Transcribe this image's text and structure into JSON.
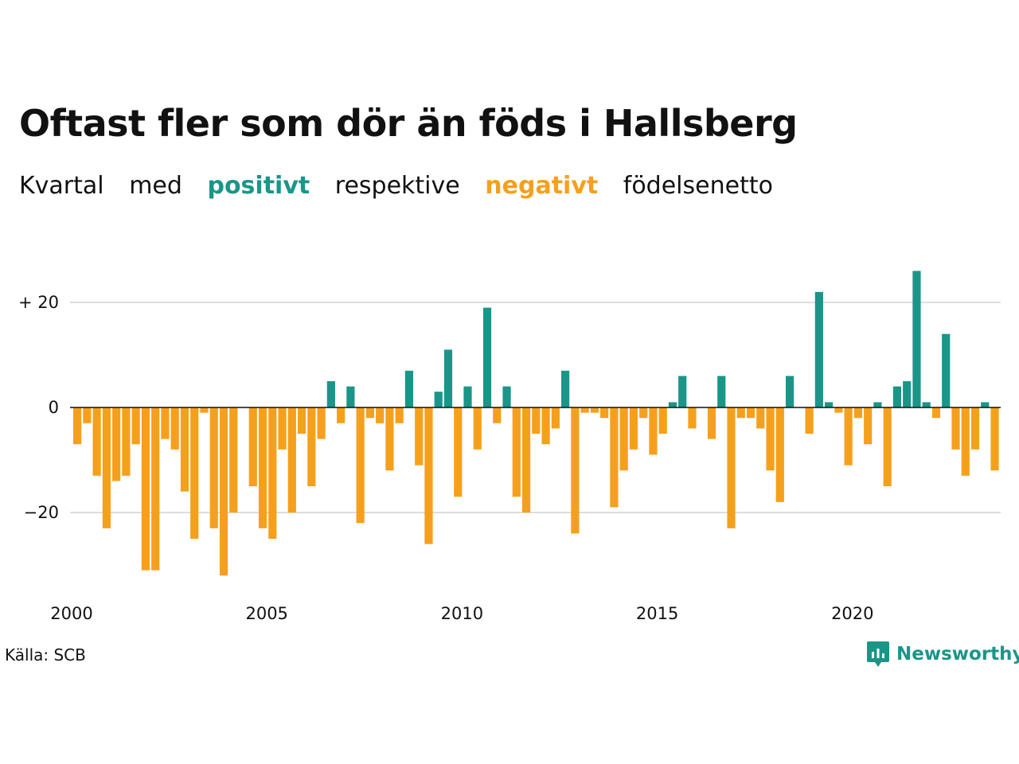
{
  "title": "Oftast fler som dör än föds i Hallsberg",
  "subtitle": {
    "w1": "Kvartal",
    "w2": "med",
    "positive": "positivt",
    "w3": "respektive",
    "negative": "negativt",
    "w4": "födelsenetto"
  },
  "source": "Källa: SCB",
  "brand": "Newsworthy",
  "colors": {
    "positive": "#1a9688",
    "negative": "#f5a01d",
    "grid": "#dddddd"
  },
  "chart_data": {
    "type": "bar",
    "title": "Oftast fler som dör än föds i Hallsberg",
    "xlabel": "",
    "ylabel": "",
    "ylim": [
      -33,
      28
    ],
    "y_ticks": [
      {
        "value": 20,
        "label": "+ 20"
      },
      {
        "value": 0,
        "label": "0"
      },
      {
        "value": -20,
        "label": "−20"
      }
    ],
    "x_ticks": [
      "2000",
      "2005",
      "2010",
      "2015",
      "2020"
    ],
    "x_start_year": 2000,
    "quarters_per_year": 4,
    "grid": true,
    "values": [
      -7,
      -3,
      -13,
      -23,
      -14,
      -13,
      -7,
      -31,
      -31,
      -6,
      -8,
      -16,
      -25,
      -1,
      -23,
      -32,
      -20,
      0,
      -15,
      -23,
      -25,
      -8,
      -20,
      -5,
      -15,
      -6,
      5,
      -3,
      4,
      -22,
      -2,
      -3,
      -12,
      -3,
      7,
      -11,
      -26,
      3,
      11,
      -17,
      4,
      -8,
      19,
      -3,
      4,
      -17,
      -20,
      -5,
      -7,
      -4,
      7,
      -24,
      -1,
      -1,
      -2,
      -19,
      -12,
      -8,
      -2,
      -9,
      -5,
      1,
      6,
      -4,
      0,
      -6,
      6,
      -23,
      -2,
      -2,
      -4,
      -12,
      -18,
      6,
      0,
      -5,
      22,
      1,
      -1,
      -11,
      -2,
      -7,
      1,
      -15,
      4,
      5,
      26,
      1,
      -2,
      14,
      -8,
      -13,
      -8,
      1,
      -12
    ]
  }
}
